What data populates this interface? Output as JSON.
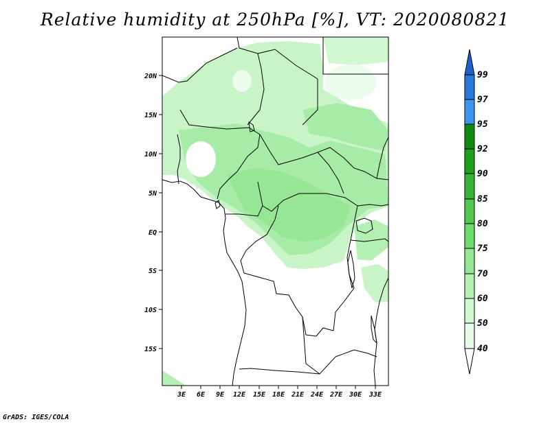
{
  "title": "Relative humidity at 250hPa [%], VT: 2020080821",
  "credit": "GrADS: IGES/COLA",
  "map": {
    "variable": "Relative humidity",
    "level": "250hPa",
    "units": "%",
    "valid_time": "2020080821",
    "region": "Central Africa"
  },
  "axes": {
    "lat_ticks": [
      "20N",
      "15N",
      "10N",
      "5N",
      "EQ",
      "5S",
      "10S",
      "15S"
    ],
    "lon_ticks": [
      "3E",
      "6E",
      "9E",
      "12E",
      "15E",
      "18E",
      "21E",
      "24E",
      "27E",
      "30E",
      "33E"
    ]
  },
  "colorbar": {
    "labels": [
      "99",
      "97",
      "95",
      "92",
      "90",
      "85",
      "80",
      "75",
      "70",
      "60",
      "50",
      "40"
    ],
    "colors": {
      "b99_plus": "#1e64c8",
      "b97_99": "#2878dc",
      "b95_97": "#3c96f0",
      "b92_95": "#0f8c0f",
      "b90_92": "#1ea01e",
      "b85_90": "#37b437",
      "b80_85": "#50c850",
      "b75_80": "#6edc6e",
      "b70_75": "#96e696",
      "b60_70": "#b4f0b4",
      "b50_60": "#d2f8d2",
      "b40_50": "#e6fae6"
    }
  }
}
